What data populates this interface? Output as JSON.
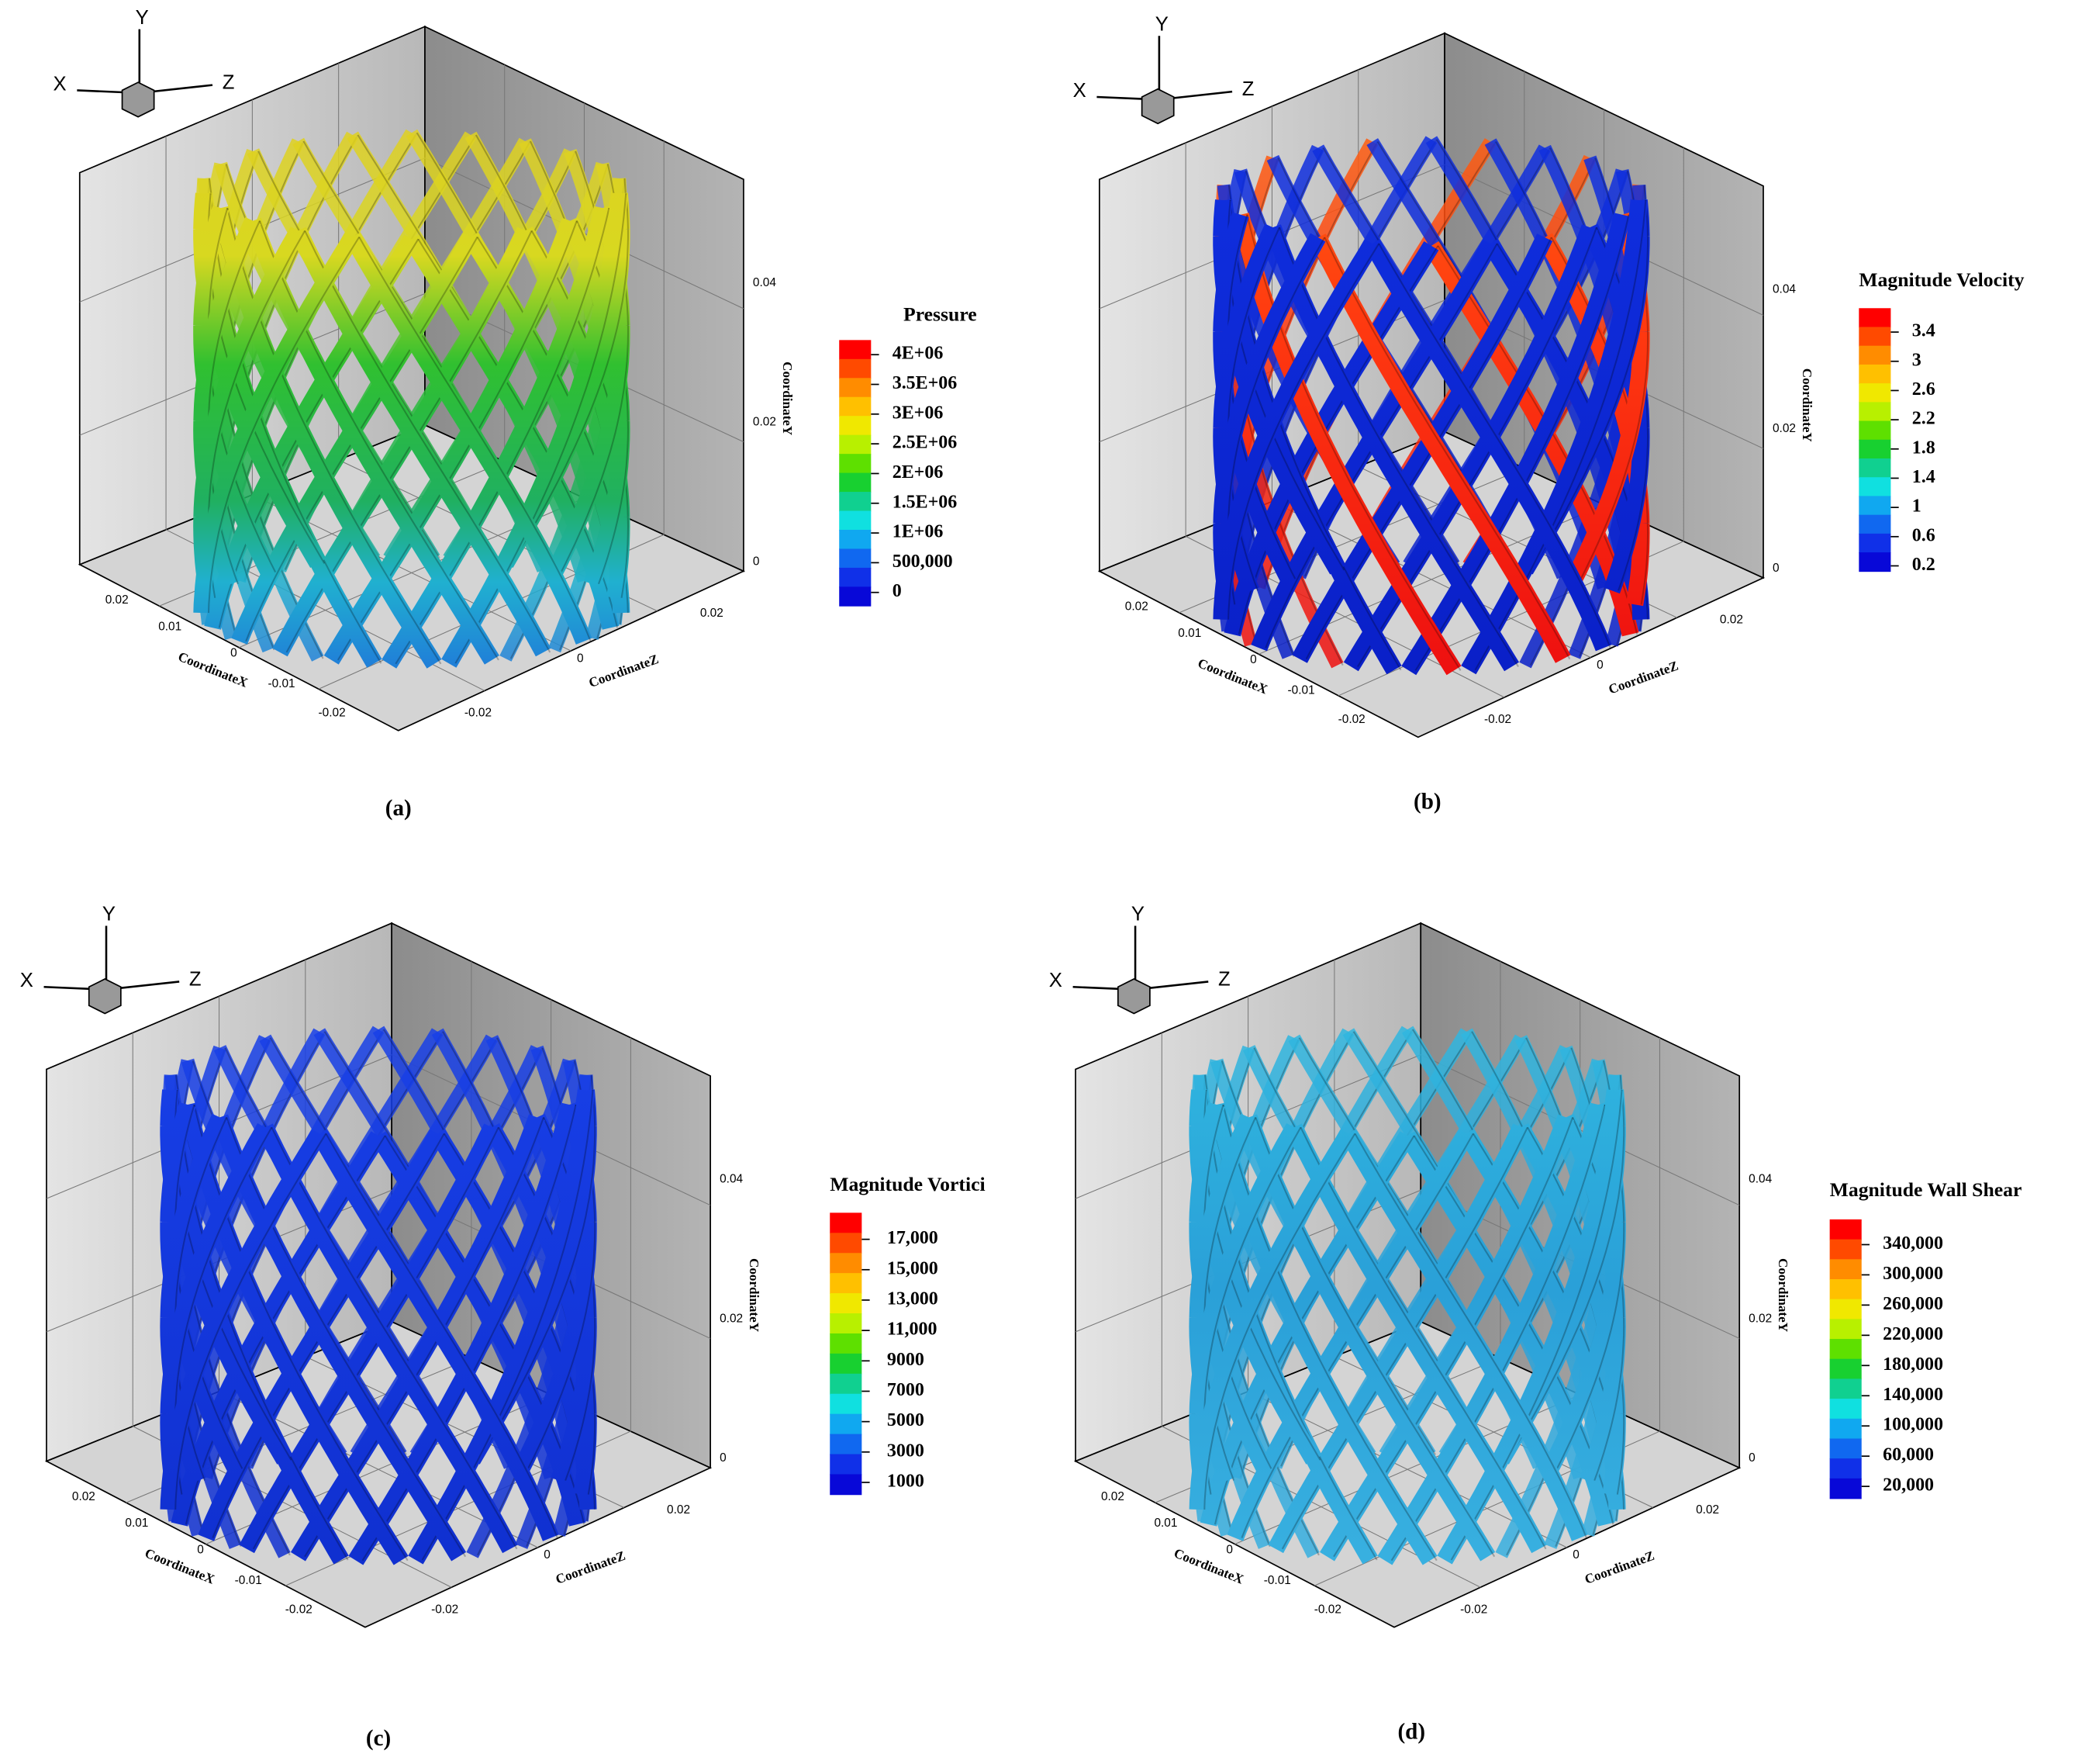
{
  "panels": [
    {
      "caption": "(a)",
      "triad": {
        "x": "X",
        "y": "Y",
        "z": "Z"
      },
      "axes": {
        "x_title": "CoordinateX",
        "z_title": "CoordinateZ",
        "y_title": "CoordinateY",
        "x_ticks": [
          "0.02",
          "0.01",
          "0",
          "-0.01",
          "-0.02"
        ],
        "z_ticks": [
          "0.02",
          "0",
          "-0.02"
        ],
        "y_ticks": [
          "0.04",
          "0.02",
          "0"
        ]
      },
      "legend": {
        "title": "Pressure",
        "labels": [
          "4E+06",
          "3.5E+06",
          "3E+06",
          "2.5E+06",
          "2E+06",
          "1.5E+06",
          "1E+06",
          "500,000",
          "0"
        ]
      }
    },
    {
      "caption": "(b)",
      "triad": {
        "x": "X",
        "y": "Y",
        "z": "Z"
      },
      "axes": {
        "x_title": "CoordinateX",
        "z_title": "CoordinateZ",
        "y_title": "CoordinateY",
        "x_ticks": [
          "0.02",
          "0.01",
          "0",
          "-0.01",
          "-0.02"
        ],
        "z_ticks": [
          "0.02",
          "0",
          "-0.02"
        ],
        "y_ticks": [
          "0.04",
          "0.02",
          "0"
        ]
      },
      "legend": {
        "title": "Magnitude Velocity",
        "labels": [
          "3.4",
          "3",
          "2.6",
          "2.2",
          "1.8",
          "1.4",
          "1",
          "0.6",
          "0.2"
        ]
      }
    },
    {
      "caption": "(c)",
      "triad": {
        "x": "X",
        "y": "Y",
        "z": "Z"
      },
      "axes": {
        "x_title": "CoordinateX",
        "z_title": "CoordinateZ",
        "y_title": "CoordinateY",
        "x_ticks": [
          "0.02",
          "0.01",
          "0",
          "-0.01",
          "-0.02"
        ],
        "z_ticks": [
          "0.02",
          "0",
          "-0.02"
        ],
        "y_ticks": [
          "0.04",
          "0.02",
          "0"
        ]
      },
      "legend": {
        "title": "Magnitude Vortici",
        "labels": [
          "17,000",
          "15,000",
          "13,000",
          "11,000",
          "9000",
          "7000",
          "5000",
          "3000",
          "1000"
        ]
      }
    },
    {
      "caption": "(d)",
      "triad": {
        "x": "X",
        "y": "Y",
        "z": "Z"
      },
      "axes": {
        "x_title": "CoordinateX",
        "z_title": "CoordinateZ",
        "y_title": "CoordinateY",
        "x_ticks": [
          "0.02",
          "0.01",
          "0",
          "-0.01",
          "-0.02"
        ],
        "z_ticks": [
          "0.02",
          "0",
          "-0.02"
        ],
        "y_ticks": [
          "0.04",
          "0.02",
          "0"
        ]
      },
      "legend": {
        "title": "Magnitude Wall Shear",
        "labels": [
          "340,000",
          "300,000",
          "260,000",
          "220,000",
          "180,000",
          "140,000",
          "100,000",
          "60,000",
          "20,000"
        ]
      }
    }
  ]
}
